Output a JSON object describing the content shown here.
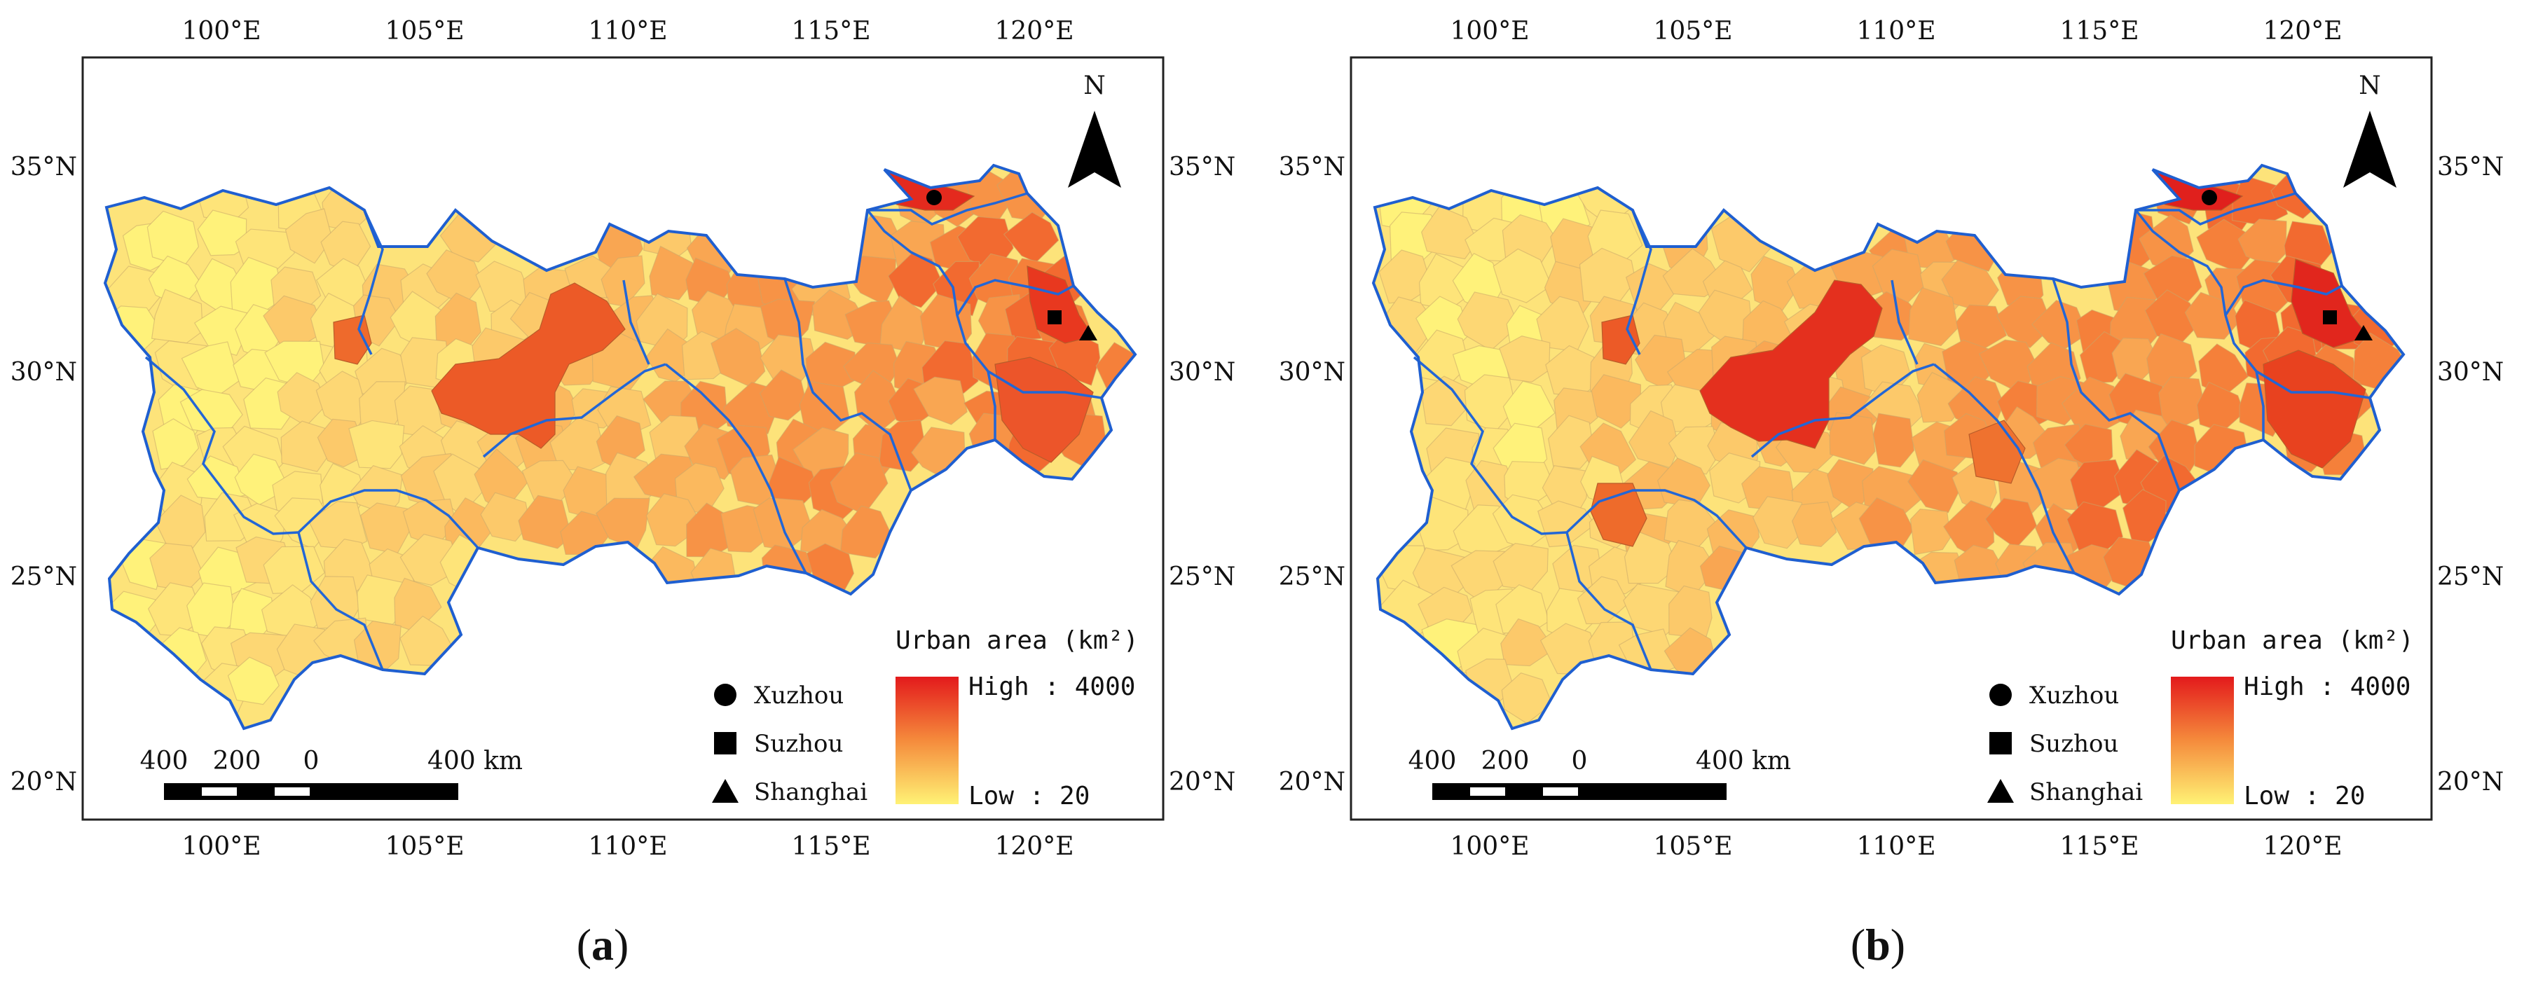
{
  "figure": {
    "panels": [
      {
        "id": "a",
        "caption_open": "(",
        "caption_letter": "a",
        "caption_close": ")",
        "variant": "a",
        "lon_ticks": [
          "100°E",
          "105°E",
          "110°E",
          "115°E",
          "120°E"
        ],
        "lat_ticks": [
          "35°N",
          "30°N",
          "25°N",
          "20°N"
        ],
        "north": "N",
        "legend": {
          "title": "Urban area (km²)",
          "high": "High : 4000",
          "low": "Low : 20",
          "color_high": "#e31a1c",
          "color_mid": "#f58b3c",
          "color_low": "#fff275"
        },
        "cities": [
          {
            "name": "Xuzhou",
            "symbol": "circle-icon"
          },
          {
            "name": "Suzhou",
            "symbol": "square-icon"
          },
          {
            "name": "Shanghai",
            "symbol": "triangle-icon"
          }
        ],
        "scalebar": {
          "labels": [
            "400",
            "200",
            "0",
            "400 km"
          ]
        }
      },
      {
        "id": "b",
        "caption_open": "(",
        "caption_letter": "b",
        "caption_close": ")",
        "variant": "b",
        "lon_ticks": [
          "100°E",
          "105°E",
          "110°E",
          "115°E",
          "120°E"
        ],
        "lat_ticks": [
          "35°N",
          "30°N",
          "25°N",
          "20°N"
        ],
        "north": "N",
        "legend": {
          "title": "Urban area (km²)",
          "high": "High : 4000",
          "low": "Low : 20",
          "color_high": "#e31a1c",
          "color_mid": "#f58b3c",
          "color_low": "#fff275"
        },
        "cities": [
          {
            "name": "Xuzhou",
            "symbol": "circle-icon"
          },
          {
            "name": "Suzhou",
            "symbol": "square-icon"
          },
          {
            "name": "Shanghai",
            "symbol": "triangle-icon"
          }
        ],
        "scalebar": {
          "labels": [
            "400",
            "200",
            "0",
            "400 km"
          ]
        }
      }
    ]
  }
}
